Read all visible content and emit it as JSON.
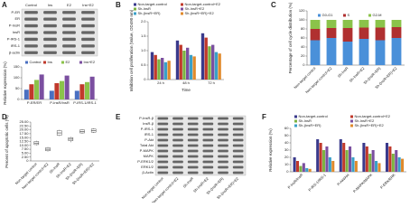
{
  "blots": [
    {
      "panel": "A",
      "rows": [
        "P-ER",
        "ER",
        "P-InsR",
        "InsR",
        "P-IRS-1",
        "IRS-1",
        "β-actin"
      ],
      "columns": [
        "Control",
        "Ins",
        "E2",
        "Ins+E2"
      ]
    },
    {
      "panel": "E",
      "rows": [
        "P-InsR-β",
        "InsR-β",
        "P-IRS-1",
        "IRS-1",
        "P-Akt",
        "Total Akt",
        "P-MAPK",
        "MAPK",
        "P-ERK1/2",
        "ERK1/2",
        "β-Actin"
      ],
      "columns": [
        "Non-target control",
        "Non-target control+E2",
        "Sh-InsR",
        "Sh-InsR+E2",
        "Sh-(InsR+ER)",
        "Sh-(InsR+ER)+E2"
      ]
    }
  ],
  "chart_data": [
    {
      "type": "bar",
      "y_label": "Relative expression (%)",
      "categories": [
        "P-ER/ER",
        "P-InsR/InsR",
        "P-IRS-1/IRS-1"
      ],
      "series": [
        {
          "name": "Control",
          "color": "#4a6fc1",
          "values": [
            45,
            40,
            40
          ]
        },
        {
          "name": "Ins",
          "color": "#c0392b",
          "values": [
            70,
            75,
            70
          ]
        },
        {
          "name": "E2",
          "color": "#8bc34a",
          "values": [
            90,
            85,
            80
          ]
        },
        {
          "name": "Ins+E2",
          "color": "#7b4fa0",
          "values": [
            115,
            110,
            105
          ]
        }
      ],
      "ylim": [
        0,
        150
      ],
      "yticks": [
        0,
        50,
        100,
        150
      ]
    },
    {
      "type": "bar",
      "panel": "B",
      "y_label": "Inhibition cell proliferation (Value, OD490 nm)",
      "x_label": "Time",
      "categories": [
        "24 h",
        "48 h",
        "72 h"
      ],
      "series": [
        {
          "name": "Non-target-control",
          "color": "#3a3a8c",
          "values": [
            0.95,
            1.35,
            1.6
          ]
        },
        {
          "name": "Non-target-control+E2",
          "color": "#c0392b",
          "values": [
            0.85,
            1.2,
            1.45
          ]
        },
        {
          "name": "Sh-InsR",
          "color": "#7cb342",
          "values": [
            0.7,
            1.0,
            1.15
          ]
        },
        {
          "name": "Sh-InsR+E2",
          "color": "#7b4fa0",
          "values": [
            0.75,
            1.1,
            1.2
          ]
        },
        {
          "name": "Sh-(InsR+ER)",
          "color": "#3aa0c8",
          "values": [
            0.6,
            0.85,
            0.95
          ]
        },
        {
          "name": "Sh-(InsR+ER)+E2",
          "color": "#e08a2c",
          "values": [
            0.65,
            0.8,
            0.9
          ]
        }
      ],
      "ylim": [
        0,
        2
      ],
      "yticks": [
        0,
        0.5,
        {
          "value": 1,
          "label": "1.0"
        },
        1.5,
        {
          "value": 2,
          "label": "2.0"
        }
      ]
    },
    {
      "type": "stacked_bar",
      "panel": "C",
      "y_label": "Percentage of cell cycle distribution (%)",
      "categories": [
        "Non-target control",
        "Non-target control+E2",
        "Sh-InsR",
        "Sh-InsR+E2",
        "Sh-(InsR+ER)",
        "Sh-(InsR+ER)+E2"
      ],
      "series": [
        {
          "name": "G0-G1",
          "color": "#4a90d9",
          "values": [
            55,
            60,
            52,
            58,
            55,
            60
          ]
        },
        {
          "name": "S",
          "color": "#b03030",
          "values": [
            25,
            22,
            30,
            25,
            28,
            24
          ]
        },
        {
          "name": "G2-M",
          "color": "#8bc34a",
          "values": [
            20,
            18,
            18,
            17,
            17,
            16
          ]
        }
      ],
      "ylim": [
        0,
        120
      ],
      "yticks": [
        0,
        20,
        40,
        60,
        80,
        100,
        120
      ]
    },
    {
      "type": "box",
      "panel": "D",
      "y_label": "Percent of apoptotic cells (%)",
      "categories": [
        "Non-target control",
        "Non-target control+E2",
        "Sh-InsR",
        "Sh-InsR+E2",
        "Sh-(InsR+ER)",
        "Sh-(InsR+ER)+E2"
      ],
      "min": [
        10,
        6,
        16,
        12,
        17.5,
        18
      ],
      "q1": [
        10.5,
        6.5,
        16.5,
        13,
        18,
        18.5
      ],
      "median": [
        11.5,
        7.5,
        18,
        14,
        19,
        19.5
      ],
      "q3": [
        12.5,
        8.5,
        19.5,
        15,
        20,
        20.5
      ],
      "max": [
        13,
        9,
        20,
        15.5,
        20.5,
        21
      ],
      "ylim": [
        0,
        25
      ],
      "yticks": [
        0,
        {
          "value": 2.5,
          "label": "2.50"
        },
        {
          "value": 5,
          "label": "5.00"
        },
        {
          "value": 7.5,
          "label": "7.50"
        },
        {
          "value": 10,
          "label": "10.00"
        },
        {
          "value": 12.5,
          "label": "12.50"
        },
        {
          "value": 15,
          "label": "15.00"
        },
        {
          "value": 17.5,
          "label": "17.50"
        },
        {
          "value": 20,
          "label": "20.00"
        },
        {
          "value": 22.5,
          "label": "22.50"
        },
        {
          "value": 25,
          "label": "25.00"
        }
      ]
    },
    {
      "type": "bar",
      "panel": "F",
      "y_label": "Relative expression (%)",
      "categories": [
        "P-InsR/InsR",
        "P-IRS-1/IRS-1",
        "P-Akt/Akt",
        "P-MAPK/MAPK",
        "P-ERK/ERK"
      ],
      "series": [
        {
          "name": "Non-target-control",
          "color": "#3a3a8c",
          "values": [
            20,
            45,
            45,
            40,
            40
          ]
        },
        {
          "name": "Non-target-control+E2",
          "color": "#c0392b",
          "values": [
            15,
            40,
            40,
            35,
            35
          ]
        },
        {
          "name": "Sh-InsR",
          "color": "#7cb342",
          "values": [
            8,
            30,
            30,
            25,
            25
          ]
        },
        {
          "name": "Sh-InsR+E2",
          "color": "#7b4fa0",
          "values": [
            12,
            35,
            35,
            30,
            30
          ]
        },
        {
          "name": "Sh-(InsR+ER)",
          "color": "#3aa0c8",
          "values": [
            5,
            20,
            20,
            15,
            20
          ]
        },
        {
          "name": "Sh-(InsR+ER)+E2",
          "color": "#e08a2c",
          "values": [
            4,
            15,
            15,
            12,
            18
          ]
        }
      ],
      "ylim": [
        0,
        60
      ],
      "yticks": [
        0,
        10,
        20,
        30,
        40,
        50,
        60
      ]
    }
  ]
}
